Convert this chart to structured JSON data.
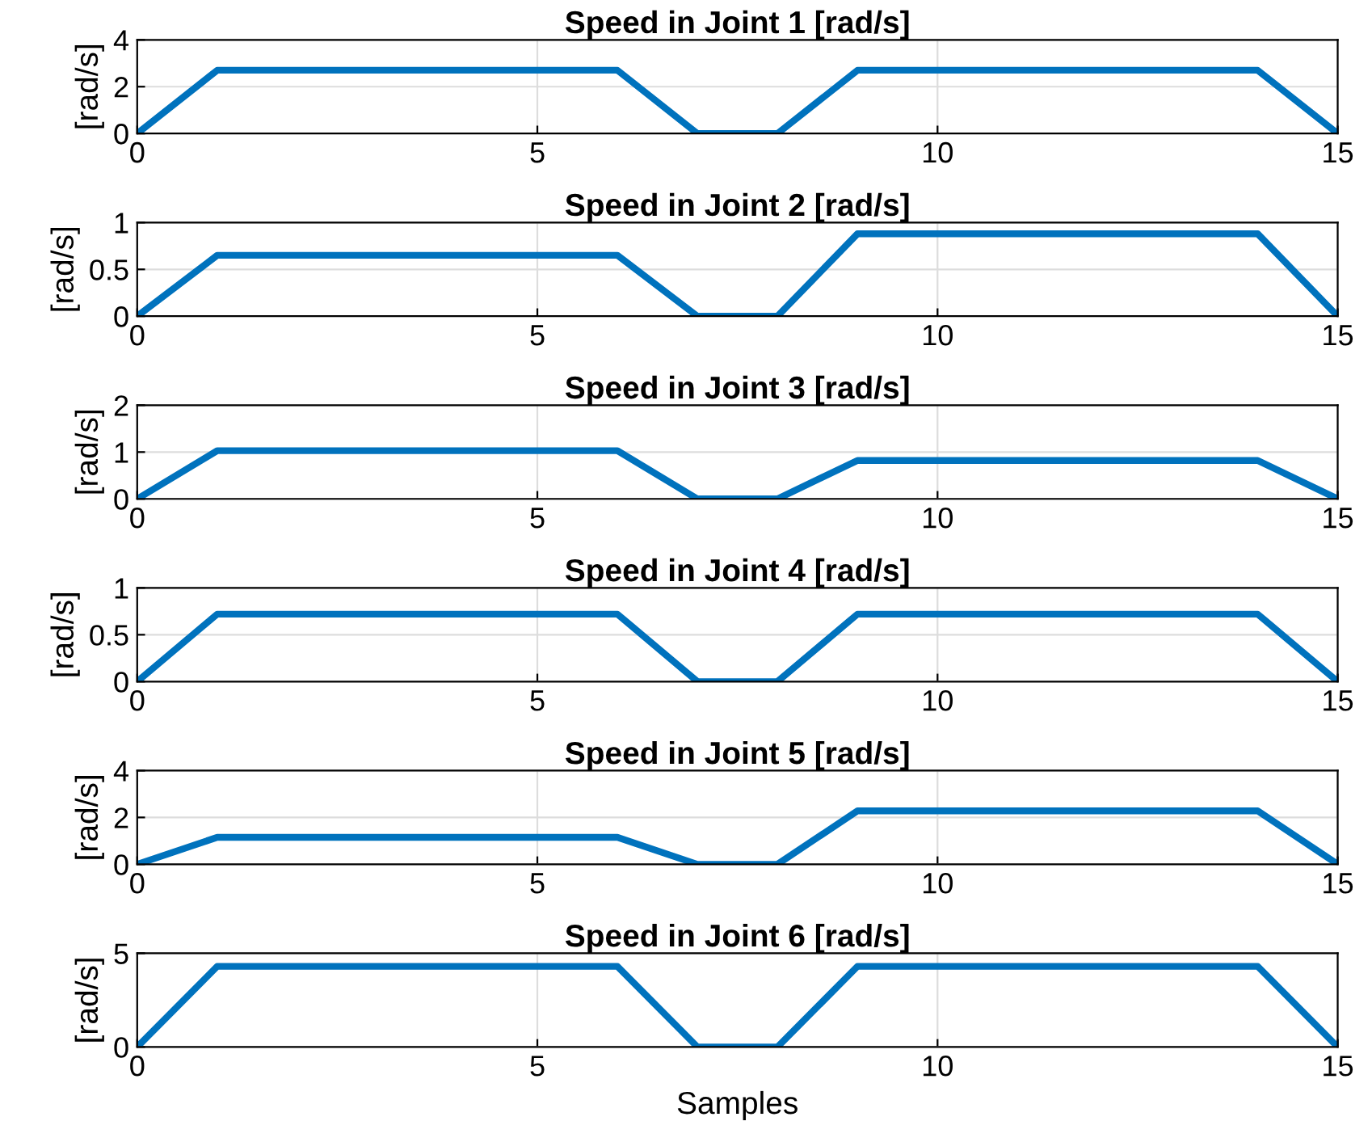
{
  "chart_data": [
    {
      "type": "line",
      "title": "Speed in Joint 1 [rad/s]",
      "ylabel": "[rad/s]",
      "x": [
        0,
        1,
        6,
        7,
        8,
        9,
        14,
        15
      ],
      "series": [
        {
          "color": "#0072bd",
          "values": [
            0,
            2.7,
            2.7,
            0,
            0,
            2.7,
            2.7,
            0
          ]
        }
      ],
      "xlim": [
        0,
        15
      ],
      "xticks": [
        0,
        5,
        10,
        15
      ],
      "ylim": [
        0,
        4
      ],
      "yticks": [
        0,
        2,
        4
      ],
      "grid": true
    },
    {
      "type": "line",
      "title": "Speed in Joint 2 [rad/s]",
      "ylabel": "[rad/s]",
      "x": [
        0,
        1,
        6,
        7,
        8,
        9,
        14,
        15
      ],
      "series": [
        {
          "color": "#0072bd",
          "values": [
            0,
            0.65,
            0.65,
            0,
            0,
            0.88,
            0.88,
            0
          ]
        }
      ],
      "xlim": [
        0,
        15
      ],
      "xticks": [
        0,
        5,
        10,
        15
      ],
      "ylim": [
        0,
        1
      ],
      "yticks": [
        0,
        0.5,
        1
      ],
      "grid": true
    },
    {
      "type": "line",
      "title": "Speed in Joint 3 [rad/s]",
      "ylabel": "[rad/s]",
      "x": [
        0,
        1,
        6,
        7,
        8,
        9,
        14,
        15
      ],
      "series": [
        {
          "color": "#0072bd",
          "values": [
            0,
            1.03,
            1.03,
            0,
            0,
            0.82,
            0.82,
            0
          ]
        }
      ],
      "xlim": [
        0,
        15
      ],
      "xticks": [
        0,
        5,
        10,
        15
      ],
      "ylim": [
        0,
        2
      ],
      "yticks": [
        0,
        1,
        2
      ],
      "grid": true
    },
    {
      "type": "line",
      "title": "Speed in Joint 4 [rad/s]",
      "ylabel": "[rad/s]",
      "x": [
        0,
        1,
        6,
        7,
        8,
        9,
        14,
        15
      ],
      "series": [
        {
          "color": "#0072bd",
          "values": [
            0,
            0.72,
            0.72,
            0,
            0,
            0.72,
            0.72,
            0
          ]
        }
      ],
      "xlim": [
        0,
        15
      ],
      "xticks": [
        0,
        5,
        10,
        15
      ],
      "ylim": [
        0,
        1
      ],
      "yticks": [
        0,
        0.5,
        1
      ],
      "grid": true
    },
    {
      "type": "line",
      "title": "Speed in Joint 5 [rad/s]",
      "ylabel": "[rad/s]",
      "x": [
        0,
        1,
        6,
        7,
        8,
        9,
        14,
        15
      ],
      "series": [
        {
          "color": "#0072bd",
          "values": [
            0,
            1.15,
            1.15,
            0,
            0,
            2.28,
            2.28,
            0
          ]
        }
      ],
      "xlim": [
        0,
        15
      ],
      "xticks": [
        0,
        5,
        10,
        15
      ],
      "ylim": [
        0,
        4
      ],
      "yticks": [
        0,
        2,
        4
      ],
      "grid": true
    },
    {
      "type": "line",
      "title": "Speed in Joint 6 [rad/s]",
      "ylabel": "[rad/s]",
      "xlabel": "Samples",
      "x": [
        0,
        1,
        6,
        7,
        8,
        9,
        14,
        15
      ],
      "series": [
        {
          "color": "#0072bd",
          "values": [
            0,
            4.3,
            4.3,
            0,
            0,
            4.3,
            4.3,
            0
          ]
        }
      ],
      "xlim": [
        0,
        15
      ],
      "xticks": [
        0,
        5,
        10,
        15
      ],
      "ylim": [
        0,
        5
      ],
      "yticks": [
        0,
        5
      ],
      "grid": true
    }
  ]
}
